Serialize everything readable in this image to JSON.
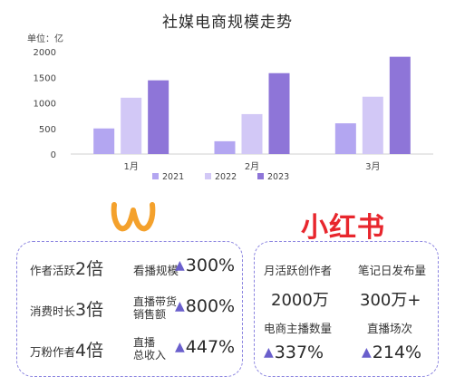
{
  "chart_data": {
    "type": "bar",
    "title": "社媒电商规模走势",
    "unit_label": "单位：亿",
    "categories": [
      "1月",
      "2月",
      "3月"
    ],
    "series": [
      {
        "name": "2021",
        "values": [
          500,
          250,
          600
        ],
        "color": "#b3a6f1"
      },
      {
        "name": "2022",
        "values": [
          1100,
          780,
          1120
        ],
        "color": "#d2c8f6"
      },
      {
        "name": "2023",
        "values": [
          1440,
          1580,
          1900
        ],
        "color": "#8e75d8"
      }
    ],
    "yticks": [
      0,
      500,
      1000,
      1500,
      2000
    ],
    "ylim": [
      0,
      2000
    ],
    "legend": "bottom",
    "grid": false
  },
  "left_card": {
    "logo_icon": "orange-w-logo-icon",
    "row1": {
      "label": "作者活跃",
      "value": "2倍",
      "metric": "看播规模",
      "pct": "300%"
    },
    "row2": {
      "label": "消费时长",
      "value": "3倍",
      "metric_line1": "直播带货",
      "metric_line2": "销售额",
      "pct": "800%"
    },
    "row3": {
      "label": "万粉作者",
      "value": "4倍",
      "metric_line1": "直播",
      "metric_line2": "总收入",
      "pct": "447%"
    }
  },
  "right_card": {
    "logo_text": "小红书",
    "logo_color": "#e8262d",
    "label1": "月活跃创作者",
    "value1": "2000万",
    "label2": "笔记日发布量",
    "value2": "300万+",
    "label3": "电商主播数量",
    "pct3": "337%",
    "label4": "直播场次",
    "pct4": "214%"
  },
  "colors": {
    "accent": "#6a5fcc",
    "card_border": "#8b84e0",
    "logo_orange": "#f4a12c"
  }
}
